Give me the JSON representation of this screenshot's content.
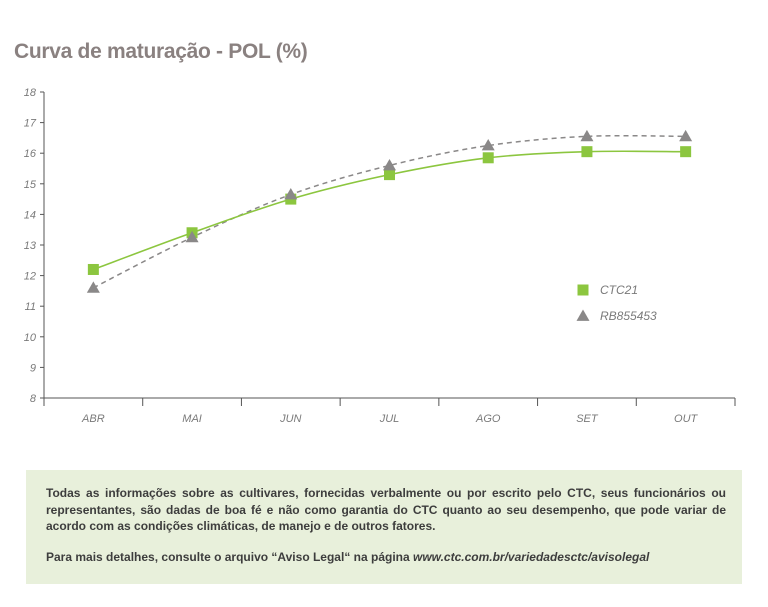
{
  "title": "Curva de maturação - POL (%)",
  "legend": [
    {
      "label": "CTC21",
      "marker": "square",
      "color": "#8cc63f"
    },
    {
      "label": "RB855453",
      "marker": "triangle",
      "color": "#8a8888"
    }
  ],
  "chart_data": {
    "type": "line",
    "title": "Curva de maturação - POL (%)",
    "categories": [
      "ABR",
      "MAI",
      "JUN",
      "JUL",
      "AGO",
      "SET",
      "OUT"
    ],
    "series": [
      {
        "name": "CTC21",
        "values": [
          12.2,
          13.4,
          14.5,
          15.3,
          15.85,
          16.05,
          16.05
        ],
        "color": "#8cc63f",
        "line_style": "solid",
        "marker": "square"
      },
      {
        "name": "RB855453",
        "values": [
          11.6,
          13.25,
          14.65,
          15.6,
          16.25,
          16.55,
          16.55
        ],
        "color": "#8a8888",
        "line_style": "dashed",
        "marker": "triangle"
      }
    ],
    "yticks": [
      8,
      9,
      10,
      11,
      12,
      13,
      14,
      15,
      16,
      17,
      18
    ],
    "ylim": [
      8,
      18
    ],
    "xlabel": "",
    "ylabel": "",
    "grid": false,
    "legend_position": "right"
  },
  "disclaimer": {
    "paragraph1": "Todas as informações sobre as cultivares, fornecidas verbalmente ou por escrito pelo CTC, seus funcionários ou representantes, são dadas de boa fé e não como garantia do CTC quanto ao seu desempenho, que pode variar de acordo com as condições climáticas, de manejo e de outros fatores.",
    "paragraph2_text": "Para mais detalhes, consulte o arquivo “Aviso Legal“ na página",
    "paragraph2_link": "www.ctc.com.br/variedadesctc/avisolegal"
  }
}
